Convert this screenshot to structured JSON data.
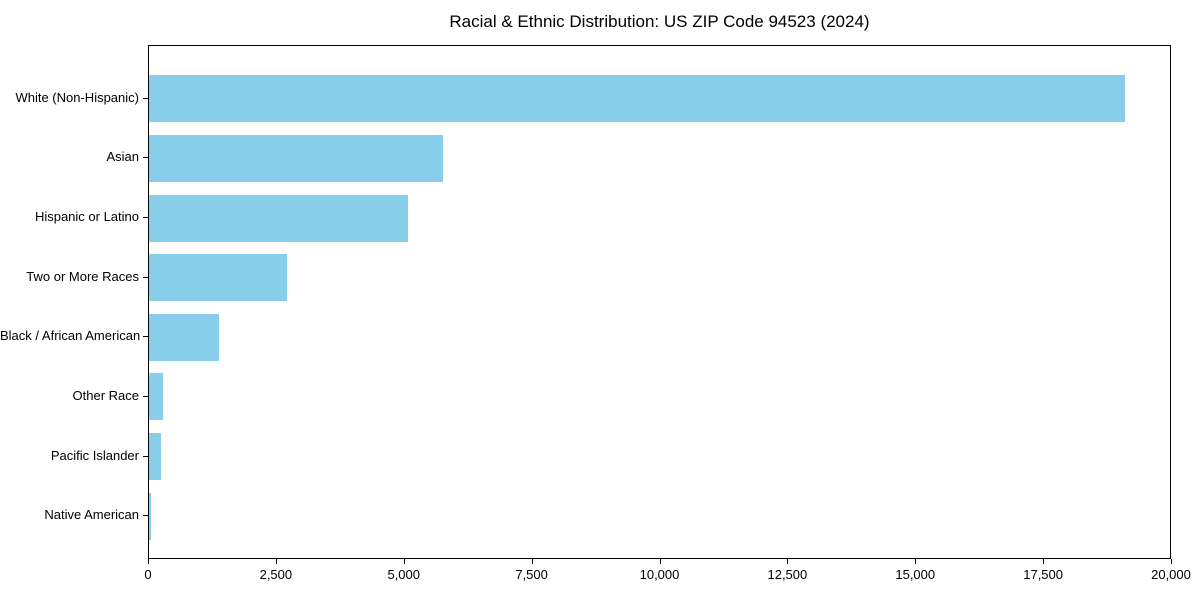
{
  "chart_data": {
    "type": "bar",
    "orientation": "horizontal",
    "title": "Racial & Ethnic Distribution: US ZIP Code 94523 (2024)",
    "categories": [
      "White (Non-Hispanic)",
      "Asian",
      "Hispanic or Latino",
      "Two or More Races",
      "Black / African American",
      "Other Race",
      "Pacific Islander",
      "Native American"
    ],
    "values": [
      19080,
      5745,
      5060,
      2690,
      1370,
      280,
      240,
      30
    ],
    "xlabel": "",
    "ylabel": "",
    "xlim": [
      0,
      20000
    ],
    "xticks": [
      {
        "value": 0,
        "label": "0"
      },
      {
        "value": 2500,
        "label": "2,500"
      },
      {
        "value": 5000,
        "label": "5,000"
      },
      {
        "value": 7500,
        "label": "7,500"
      },
      {
        "value": 10000,
        "label": "10,000"
      },
      {
        "value": 12500,
        "label": "12,500"
      },
      {
        "value": 15000,
        "label": "15,000"
      },
      {
        "value": 17500,
        "label": "17,500"
      },
      {
        "value": 20000,
        "label": "20,000"
      }
    ],
    "bar_color": "#87CEEB",
    "axis_color": "#000000",
    "grid": false,
    "legend": null
  }
}
